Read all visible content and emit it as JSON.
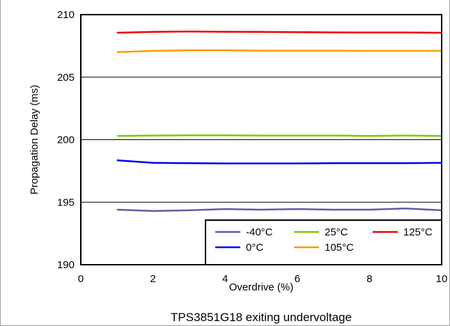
{
  "chart_data": {
    "type": "line",
    "title": "",
    "caption": "TPS3851G18 exiting undervoltage",
    "xlabel": "Overdrive (%)",
    "ylabel": "Propagation Delay (ms)",
    "xlim": [
      0,
      10
    ],
    "ylim": [
      190,
      210
    ],
    "xticks": [
      0,
      2,
      4,
      6,
      8,
      10
    ],
    "yticks": [
      190,
      195,
      200,
      205,
      210
    ],
    "grid": true,
    "legend_position": "bottom-right",
    "x": [
      1,
      2,
      3,
      4,
      5,
      6,
      7,
      8,
      9,
      10
    ],
    "series": [
      {
        "name": "-40°C",
        "color": "#5b5ea6",
        "values": [
          194.4,
          194.3,
          194.35,
          194.45,
          194.4,
          194.45,
          194.4,
          194.4,
          194.5,
          194.35
        ]
      },
      {
        "name": "0°C",
        "color": "#0000ee",
        "values": [
          198.35,
          198.15,
          198.12,
          198.1,
          198.1,
          198.1,
          198.12,
          198.12,
          198.12,
          198.15
        ]
      },
      {
        "name": "25°C",
        "color": "#80c800",
        "values": [
          200.3,
          200.33,
          200.35,
          200.35,
          200.33,
          200.33,
          200.33,
          200.3,
          200.33,
          200.3
        ]
      },
      {
        "name": "105°C",
        "color": "#ff9a00",
        "values": [
          207.0,
          207.1,
          207.15,
          207.15,
          207.12,
          207.12,
          207.12,
          207.1,
          207.1,
          207.1
        ]
      },
      {
        "name": "125°C",
        "color": "#ee0000",
        "values": [
          208.55,
          208.62,
          208.65,
          208.63,
          208.62,
          208.6,
          208.58,
          208.57,
          208.57,
          208.55
        ]
      }
    ]
  }
}
